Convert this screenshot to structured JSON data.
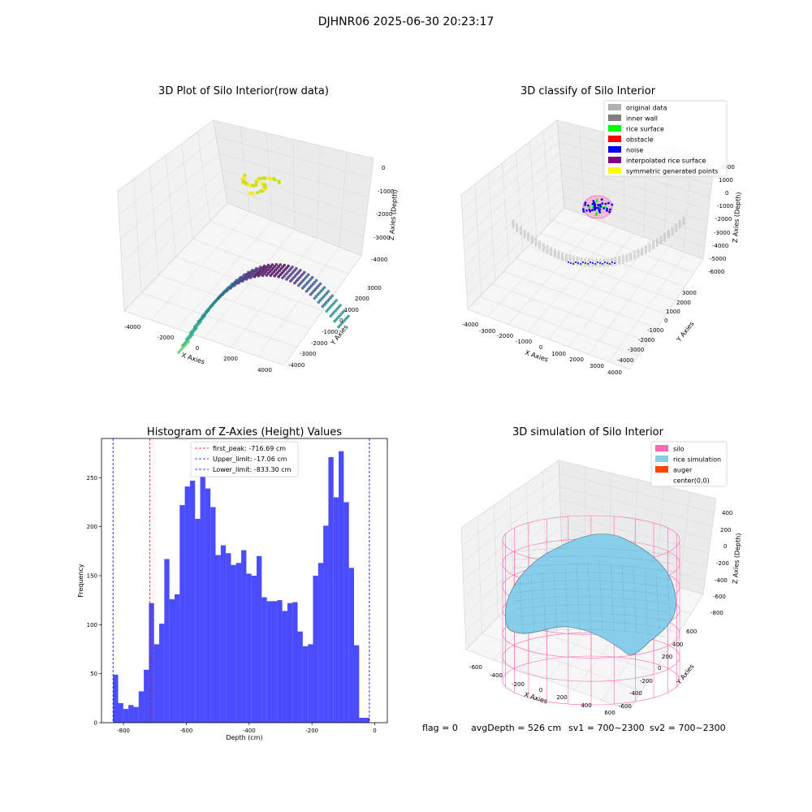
{
  "suptitle": "DJHNR06 2025-06-30 20:23:17",
  "panel1": {
    "title": "3D Plot of Silo Interior(row data)",
    "xlabel": "X Axies",
    "ylabel": "Y Axies",
    "zlabel": "Z Axies (Depth)",
    "xticks": [
      "-4000",
      "-2000",
      "0",
      "2000",
      "4000"
    ],
    "yticks": [
      "3000",
      "2000",
      "1000",
      "0",
      "-1000",
      "-2000",
      "-3000",
      "-4000"
    ],
    "zticks": [
      "0",
      "-1000",
      "-2000",
      "-3000",
      "-4000"
    ]
  },
  "panel2": {
    "title": "3D classify of Silo Interior",
    "xlabel": "X Axies",
    "ylabel": "Y Axies",
    "zlabel": "Z Axies (Depth)",
    "xticks": [
      "-4000",
      "-3000",
      "-2000",
      "-1000",
      "0",
      "1000",
      "2000",
      "3000",
      "4000"
    ],
    "yticks": [
      "3000",
      "2000",
      "1000",
      "0",
      "-1000",
      "-2000",
      "-3000",
      "-4000"
    ],
    "zticks": [
      "2000",
      "1000",
      "0",
      "-1000",
      "-2000",
      "-3000",
      "-4000",
      "-5000",
      "-6000"
    ],
    "legend": [
      {
        "label": "original data",
        "color": "#b0b0b0"
      },
      {
        "label": "inner wall",
        "color": "#808080"
      },
      {
        "label": "rice surface",
        "color": "#00ff00"
      },
      {
        "label": "obstacle",
        "color": "#ff0000"
      },
      {
        "label": "noise",
        "color": "#0000ff"
      },
      {
        "label": "interpolated rice surface",
        "color": "#800080"
      },
      {
        "label": "symmetric generated points",
        "color": "#ffff00"
      }
    ]
  },
  "panel4": {
    "title": "3D simulation of Silo Interior",
    "xlabel": "X Axies",
    "ylabel": "Y Axies",
    "zlabel": "Z Axies (Depth)",
    "xticks": [
      "-600",
      "-400",
      "-200",
      "0",
      "200",
      "400",
      "600"
    ],
    "yticks": [
      "600",
      "400",
      "200",
      "0",
      "-200",
      "-400",
      "-600"
    ],
    "zticks": [
      "400",
      "200",
      "0",
      "-200",
      "-400",
      "-600",
      "-800"
    ],
    "legend": [
      {
        "label": "silo",
        "color": "#ff69b4"
      },
      {
        "label": "rice simulation",
        "color": "#87ceeb"
      },
      {
        "label": "auger",
        "color": "#ff4500"
      },
      {
        "label": "center(0,0)",
        "color": "#ffffff"
      }
    ]
  },
  "status": {
    "flag": "flag = 0",
    "avg_depth": "avgDepth = 526 cm",
    "sv1": "sv1 = 700~2300",
    "sv2": "sv2 = 700~2300"
  },
  "chart_data": {
    "type": "bar",
    "title": "Histogram of Z-Axies (Height) Values",
    "xlabel": "Depth (cm)",
    "ylabel": "Frequency",
    "xlim": [
      -870,
      40
    ],
    "ylim": [
      0,
      290
    ],
    "bar_color": "#0000ff",
    "xticks": [
      -800,
      -600,
      -400,
      -200,
      0
    ],
    "yticks": [
      0,
      50,
      100,
      150,
      200,
      250
    ],
    "bin_start": -833.3,
    "bin_width": 16.326,
    "values": [
      49,
      20,
      14,
      18,
      16,
      32,
      54,
      122,
      80,
      101,
      167,
      126,
      131,
      222,
      241,
      247,
      208,
      251,
      239,
      220,
      171,
      181,
      173,
      161,
      163,
      176,
      152,
      150,
      170,
      128,
      124,
      124,
      125,
      114,
      122,
      123,
      93,
      78,
      80,
      150,
      163,
      201,
      271,
      230,
      277,
      225,
      158,
      79,
      5,
      5
    ],
    "lines": [
      {
        "label": "first_peak: -716.69 cm",
        "value": -716.69,
        "color": "#ff0000"
      },
      {
        "label": "Upper_limit: -17.06 cm",
        "value": -17.06,
        "color": "#0000ff"
      },
      {
        "label": "Lower_limit: -833.30 cm",
        "value": -833.3,
        "color": "#0000ff"
      }
    ]
  }
}
